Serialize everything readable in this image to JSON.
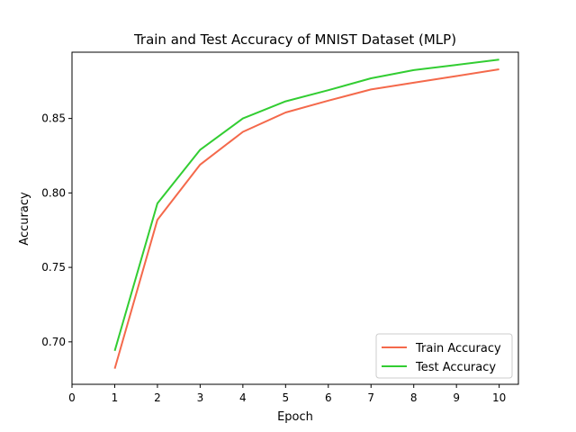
{
  "chart_data": {
    "type": "line",
    "title": "Train and Test Accuracy of MNIST Dataset (MLP)",
    "xlabel": "Epoch",
    "ylabel": "Accuracy",
    "xlim": [
      0,
      10.45
    ],
    "ylim": [
      0.6715,
      0.8945
    ],
    "xticks": [
      0,
      1,
      2,
      3,
      4,
      5,
      6,
      7,
      8,
      9,
      10
    ],
    "xtick_labels": [
      "0",
      "1",
      "2",
      "3",
      "4",
      "5",
      "6",
      "7",
      "8",
      "9",
      "10"
    ],
    "yticks": [
      0.7,
      0.75,
      0.8,
      0.85
    ],
    "ytick_labels": [
      "0.70",
      "0.75",
      "0.80",
      "0.85"
    ],
    "x": [
      1,
      2,
      3,
      4,
      5,
      6,
      7,
      8,
      9,
      10
    ],
    "series": [
      {
        "name": "Train Accuracy",
        "color": "#f4694b",
        "values": [
          0.682,
          0.782,
          0.819,
          0.841,
          0.854,
          0.862,
          0.8695,
          0.874,
          0.8785,
          0.883
        ]
      },
      {
        "name": "Test Accuracy",
        "color": "#32cd32",
        "values": [
          0.694,
          0.793,
          0.829,
          0.85,
          0.8615,
          0.869,
          0.877,
          0.8825,
          0.886,
          0.8895
        ]
      }
    ],
    "grid": false,
    "legend_position": "lower-right"
  }
}
